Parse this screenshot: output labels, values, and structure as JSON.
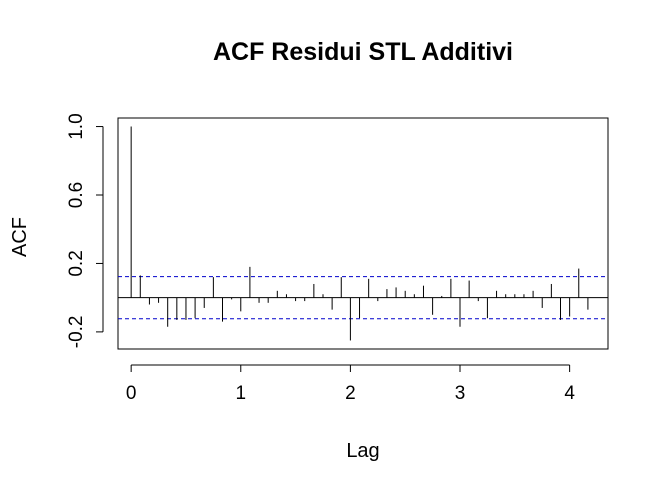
{
  "chart_data": {
    "type": "bar",
    "subtype": "acf",
    "title": "ACF Residui STL Additivi",
    "xlabel": "Lag",
    "ylabel": "ACF",
    "xlim": [
      -0.12,
      4.35
    ],
    "ylim": [
      -0.3,
      1.05
    ],
    "x_ticks": [
      "0",
      "1",
      "2",
      "3",
      "4"
    ],
    "y_ticks": [
      "-0.2",
      "0.2",
      "0.6",
      "1.0"
    ],
    "confidence_bound": 0.123,
    "series": [
      {
        "lag": [
          0,
          0.0833,
          0.1667,
          0.25,
          0.3333,
          0.4167,
          0.5,
          0.5833,
          0.6667,
          0.75,
          0.8333,
          0.9167,
          1.0,
          1.0833,
          1.1667,
          1.25,
          1.3333,
          1.4167,
          1.5,
          1.5833,
          1.6667,
          1.75,
          1.8333,
          1.9167,
          2.0,
          2.0833,
          2.1667,
          2.25,
          2.3333,
          2.4167,
          2.5,
          2.5833,
          2.6667,
          2.75,
          2.8333,
          2.9167,
          3.0,
          3.0833,
          3.1667,
          3.25,
          3.3333,
          3.4167,
          3.5,
          3.5833,
          3.6667,
          3.75,
          3.8333,
          3.9167,
          4.0,
          4.0833,
          4.1667
        ],
        "acf": [
          1.0,
          0.13,
          -0.04,
          -0.03,
          -0.17,
          -0.13,
          -0.13,
          -0.12,
          -0.06,
          0.12,
          -0.14,
          -0.01,
          -0.08,
          0.18,
          -0.03,
          -0.03,
          0.04,
          0.02,
          -0.02,
          -0.02,
          0.08,
          0.02,
          -0.07,
          0.12,
          -0.25,
          -0.12,
          0.11,
          -0.02,
          0.05,
          0.06,
          0.04,
          0.02,
          0.07,
          -0.1,
          0.01,
          0.11,
          -0.17,
          0.1,
          -0.02,
          -0.12,
          0.04,
          0.02,
          0.02,
          0.02,
          0.04,
          -0.06,
          0.08,
          -0.13,
          -0.11,
          0.17,
          -0.07
        ]
      }
    ],
    "colors": {
      "bars": "#000000",
      "confidence": "#0000cc",
      "zero_line": "#000000"
    },
    "grid": false,
    "legend": "none"
  }
}
